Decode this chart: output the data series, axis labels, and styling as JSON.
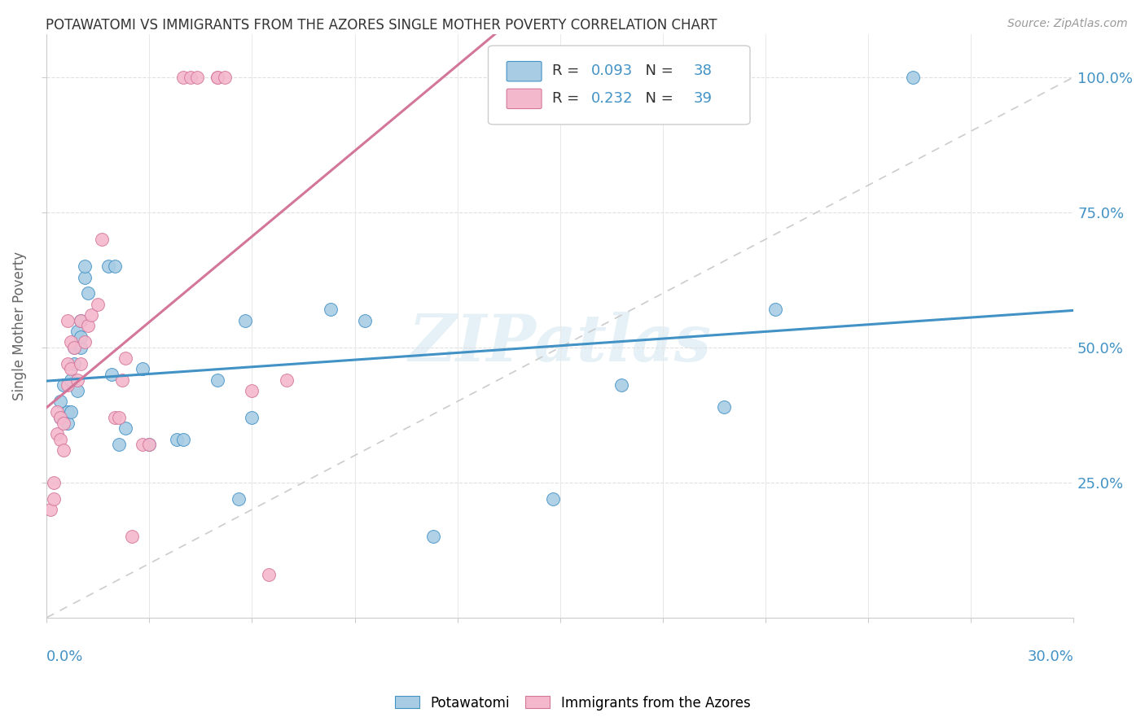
{
  "title": "POTAWATOMI VS IMMIGRANTS FROM THE AZORES SINGLE MOTHER POVERTY CORRELATION CHART",
  "source": "Source: ZipAtlas.com",
  "ylabel": "Single Mother Poverty",
  "legend_label1": "Potawatomi",
  "legend_label2": "Immigrants from the Azores",
  "R1": "0.093",
  "N1": "38",
  "R2": "0.232",
  "N2": "39",
  "ytick_values": [
    0.25,
    0.5,
    0.75,
    1.0
  ],
  "xlim": [
    0.0,
    0.3
  ],
  "ylim": [
    0.0,
    1.08
  ],
  "color_blue": "#a8cce4",
  "color_pink": "#f4b8cc",
  "line_color_blue": "#4292c6",
  "line_color_pink": "#d4769a",
  "diagonal_color": "#cccccc",
  "watermark": "ZIPatlas",
  "potawatomi_x": [
    0.004,
    0.004,
    0.005,
    0.006,
    0.006,
    0.007,
    0.007,
    0.008,
    0.008,
    0.009,
    0.009,
    0.01,
    0.01,
    0.01,
    0.011,
    0.011,
    0.012,
    0.018,
    0.019,
    0.02,
    0.021,
    0.023,
    0.028,
    0.03,
    0.038,
    0.04,
    0.05,
    0.056,
    0.058,
    0.06,
    0.083,
    0.093,
    0.113,
    0.148,
    0.168,
    0.198,
    0.213,
    0.253
  ],
  "potawatomi_y": [
    0.37,
    0.4,
    0.43,
    0.38,
    0.36,
    0.44,
    0.38,
    0.47,
    0.5,
    0.53,
    0.42,
    0.5,
    0.52,
    0.55,
    0.63,
    0.65,
    0.6,
    0.65,
    0.45,
    0.65,
    0.32,
    0.35,
    0.46,
    0.32,
    0.33,
    0.33,
    0.44,
    0.22,
    0.55,
    0.37,
    0.57,
    0.55,
    0.15,
    0.22,
    0.43,
    0.39,
    0.57,
    1.0
  ],
  "azores_x": [
    0.001,
    0.002,
    0.002,
    0.003,
    0.003,
    0.004,
    0.004,
    0.005,
    0.005,
    0.006,
    0.006,
    0.006,
    0.007,
    0.007,
    0.008,
    0.009,
    0.01,
    0.01,
    0.011,
    0.012,
    0.013,
    0.015,
    0.016,
    0.02,
    0.021,
    0.022,
    0.023,
    0.025,
    0.028,
    0.03,
    0.04,
    0.042,
    0.044,
    0.05,
    0.05,
    0.052,
    0.06,
    0.065,
    0.07
  ],
  "azores_y": [
    0.2,
    0.22,
    0.25,
    0.38,
    0.34,
    0.33,
    0.37,
    0.31,
    0.36,
    0.43,
    0.47,
    0.55,
    0.46,
    0.51,
    0.5,
    0.44,
    0.47,
    0.55,
    0.51,
    0.54,
    0.56,
    0.58,
    0.7,
    0.37,
    0.37,
    0.44,
    0.48,
    0.15,
    0.32,
    0.32,
    1.0,
    1.0,
    1.0,
    1.0,
    1.0,
    1.0,
    0.42,
    0.08,
    0.44
  ]
}
